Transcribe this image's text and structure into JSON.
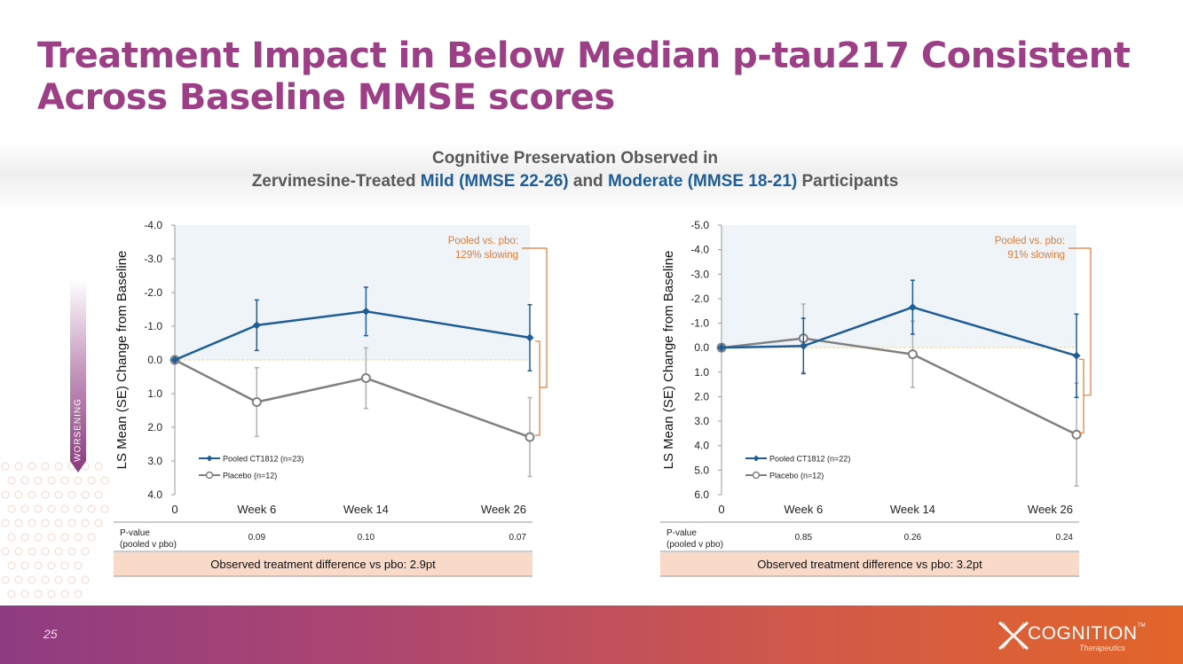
{
  "slide": {
    "title": "Treatment Impact in Below Median p-tau217 Consistent Across Baseline MMSE scores",
    "subtitle_line1": "Cognitive Preservation Observed in",
    "subtitle_pre": "Zervimesine-Treated ",
    "subtitle_mild": "Mild (MMSE 22-26)",
    "subtitle_and": " and ",
    "subtitle_moderate": "Moderate (MMSE 18-21)",
    "subtitle_post": " Participants",
    "worsening_label": "WORSENING",
    "page_number": "25",
    "logo_text": "COGNITION",
    "logo_tm": "TM",
    "logo_sub": "Therapeutics"
  },
  "colors": {
    "title": "#9c3f86",
    "treated": "#1f5d96",
    "placebo": "#808080",
    "annotation": "#e07b39",
    "band_fill": "#f9d9c8",
    "plot_shade": "#eef4f8"
  },
  "chart_data": [
    {
      "type": "line",
      "ylabel": "LS Mean (SE) Change from Baseline",
      "categories": [
        "0",
        "Week 6",
        "Week 14",
        "Week 26"
      ],
      "x": [
        0,
        6,
        14,
        26
      ],
      "ylim": [
        4.0,
        -4.0
      ],
      "yticks": [
        -4.0,
        -3.0,
        -2.0,
        -1.0,
        0.0,
        1.0,
        2.0,
        3.0,
        4.0
      ],
      "tick_labels": [
        "-4.0",
        "-3.0",
        "-2.0",
        "-1.0",
        "0.0",
        "1.0",
        "2.0",
        "3.0",
        "4.0"
      ],
      "series": [
        {
          "name": "Pooled CT1812 (n=23)",
          "key": "treated",
          "values": [
            0.0,
            -1.03,
            -1.44,
            -0.66
          ],
          "se": [
            0,
            0.75,
            0.72,
            0.98
          ]
        },
        {
          "name": "Placebo (n=12)",
          "key": "placebo",
          "values": [
            0.0,
            1.25,
            0.54,
            2.29
          ],
          "se": [
            0,
            1.02,
            0.9,
            1.17
          ]
        }
      ],
      "annotation": [
        "Pooled vs. pbo:",
        "129% slowing"
      ],
      "pvalue_label": [
        "P-value",
        "(pooled v pbo)"
      ],
      "pvalues": [
        "0.09",
        "0.10",
        "0.07"
      ],
      "difference_text": "Observed treatment difference vs pbo: 2.9pt"
    },
    {
      "type": "line",
      "ylabel": "LS Mean (SE) Change from Baseline",
      "categories": [
        "0",
        "Week 6",
        "Week 14",
        "Week 26"
      ],
      "x": [
        0,
        6,
        14,
        26
      ],
      "ylim": [
        6.0,
        -5.0
      ],
      "yticks": [
        -5.0,
        -4.0,
        -3.0,
        -2.0,
        -1.0,
        0.0,
        1.0,
        2.0,
        3.0,
        4.0,
        5.0,
        6.0
      ],
      "tick_labels": [
        "-5.0",
        "-4.0",
        "-3.0",
        "-2.0",
        "-1.0",
        "0.0",
        "1.0",
        "2.0",
        "3.0",
        "4.0",
        "5.0",
        "6.0"
      ],
      "series": [
        {
          "name": "Pooled CT1812 (n=22)",
          "key": "treated",
          "values": [
            0.0,
            -0.07,
            -1.65,
            0.33
          ],
          "se": [
            0,
            1.13,
            1.1,
            1.7
          ]
        },
        {
          "name": "Placebo (n=12)",
          "key": "placebo",
          "values": [
            0.0,
            -0.38,
            0.27,
            3.55
          ],
          "se": [
            0,
            1.4,
            1.35,
            2.1
          ]
        }
      ],
      "annotation": [
        "Pooled vs. pbo:",
        "91% slowing"
      ],
      "pvalue_label": [
        "P-value",
        "(pooled v pbo)"
      ],
      "pvalues": [
        "0.85",
        "0.26",
        "0.24"
      ],
      "difference_text": "Observed treatment difference vs pbo: 3.2pt"
    }
  ]
}
